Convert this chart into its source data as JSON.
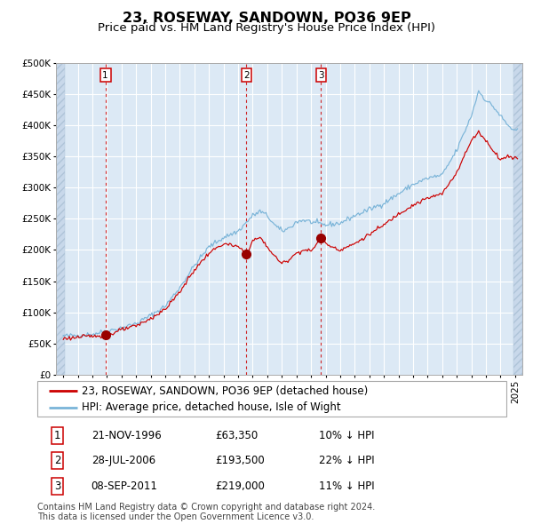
{
  "title": "23, ROSEWAY, SANDOWN, PO36 9EP",
  "subtitle": "Price paid vs. HM Land Registry's House Price Index (HPI)",
  "legend_line1": "23, ROSEWAY, SANDOWN, PO36 9EP (detached house)",
  "legend_line2": "HPI: Average price, detached house, Isle of Wight",
  "footnote1": "Contains HM Land Registry data © Crown copyright and database right 2024.",
  "footnote2": "This data is licensed under the Open Government Licence v3.0.",
  "trans_dates": [
    1996.89,
    2006.57,
    2011.69
  ],
  "trans_prices": [
    63350,
    193500,
    219000
  ],
  "trans_nums": [
    1,
    2,
    3
  ],
  "trans_date_str": [
    "21-NOV-1996",
    "28-JUL-2006",
    "08-SEP-2011"
  ],
  "trans_price_str": [
    "£63,350",
    "£193,500",
    "£219,000"
  ],
  "trans_pct_str": [
    "10% ↓ HPI",
    "22% ↓ HPI",
    "11% ↓ HPI"
  ],
  "hpi_color": "#7ab4d8",
  "price_color": "#cc0000",
  "dot_color": "#990000",
  "vline_color": "#cc0000",
  "plot_bg_color": "#dce9f5",
  "grid_color": "#ffffff",
  "ylim": [
    0,
    500000
  ],
  "yticks": [
    0,
    50000,
    100000,
    150000,
    200000,
    250000,
    300000,
    350000,
    400000,
    450000,
    500000
  ],
  "xlim_start": 1993.5,
  "xlim_end": 2025.5,
  "title_fontsize": 11.5,
  "subtitle_fontsize": 9.5,
  "tick_fontsize": 7.5,
  "legend_fontsize": 8.5,
  "table_fontsize": 8.5,
  "footnote_fontsize": 7.0
}
